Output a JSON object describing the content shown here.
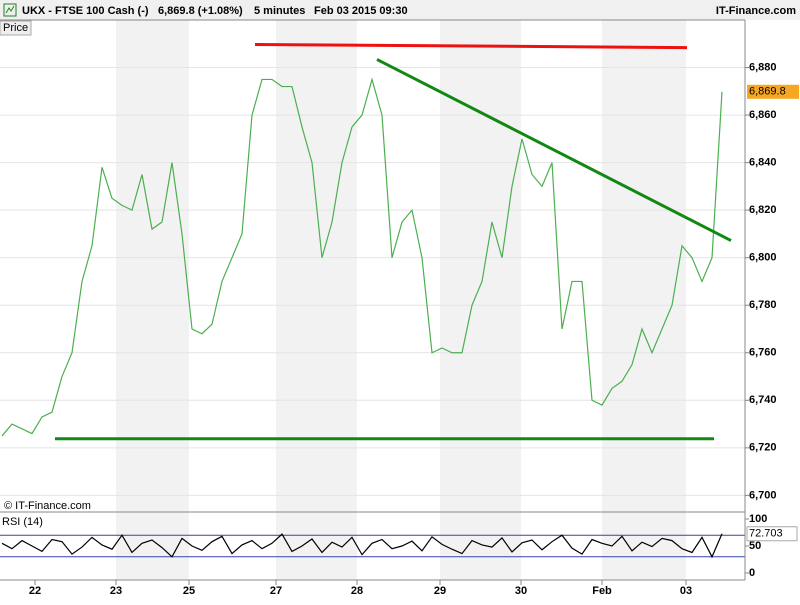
{
  "header": {
    "symbol": "UKX - FTSE 100 Cash (-)",
    "quote": "6,869.8 (+1.08%)",
    "interval": "5 minutes",
    "datetime": "Feb 03 2015 09:30",
    "brand": "IT-Finance.com"
  },
  "chart_data": [
    {
      "type": "line",
      "title": "Price",
      "watermark": "© IT-Finance.com",
      "color": "#4caf50",
      "values": [
        6725,
        6730,
        6728,
        6726,
        6733,
        6735,
        6750,
        6760,
        6790,
        6805,
        6838,
        6825,
        6822,
        6820,
        6835,
        6812,
        6815,
        6840,
        6810,
        6770,
        6768,
        6772,
        6790,
        6800,
        6810,
        6860,
        6875,
        6875,
        6872,
        6872,
        6855,
        6840,
        6800,
        6815,
        6840,
        6855,
        6860,
        6875,
        6860,
        6800,
        6815,
        6820,
        6800,
        6760,
        6762,
        6760,
        6760,
        6780,
        6790,
        6815,
        6800,
        6830,
        6850,
        6835,
        6830,
        6840,
        6770,
        6790,
        6790,
        6740,
        6738,
        6745,
        6748,
        6755,
        6770,
        6760,
        6770,
        6780,
        6805,
        6800,
        6790,
        6800,
        6869.8
      ],
      "xlim": [
        -0.2,
        74.3
      ],
      "ylim": [
        6693,
        6900
      ],
      "grid": true,
      "yticks": [
        {
          "value": 6700,
          "label": "6,700"
        },
        {
          "value": 6720,
          "label": "6,720"
        },
        {
          "value": 6740,
          "label": "6,740"
        },
        {
          "value": 6760,
          "label": "6,760"
        },
        {
          "value": 6780,
          "label": "6,780"
        },
        {
          "value": 6800,
          "label": "6,800"
        },
        {
          "value": 6820,
          "label": "6,820"
        },
        {
          "value": 6840,
          "label": "6,840"
        },
        {
          "value": 6860,
          "label": "6,860"
        },
        {
          "value": 6880,
          "label": "6,880"
        }
      ],
      "current": {
        "value": 6869.8,
        "label": "6,869.8"
      },
      "trendlines": [
        {
          "color": "#ee1111",
          "x": [
            25.3,
            68.5
          ],
          "y": [
            6889.7,
            6888.4
          ]
        },
        {
          "color": "#118811",
          "x": [
            37.5,
            72.9
          ],
          "y": [
            6883.4,
            6807.2
          ]
        },
        {
          "color": "#118811",
          "x": [
            5.3,
            71.2
          ],
          "y": [
            6723.8,
            6723.8
          ]
        }
      ]
    },
    {
      "type": "line",
      "title": "RSI (14)",
      "color": "#000000",
      "values": [
        55,
        45,
        60,
        50,
        40,
        62,
        58,
        35,
        48,
        66,
        52,
        44,
        70,
        38,
        55,
        61,
        47,
        30,
        64,
        50,
        42,
        58,
        68,
        36,
        52,
        60,
        45,
        55,
        72,
        40,
        50,
        63,
        38,
        57,
        48,
        66,
        34,
        55,
        62,
        45,
        50,
        59,
        41,
        67,
        53,
        44,
        36,
        60,
        52,
        48,
        65,
        39,
        56,
        61,
        43,
        58,
        70,
        46,
        35,
        62,
        55,
        50,
        68,
        41,
        57,
        49,
        64,
        60,
        45,
        38,
        66,
        30,
        72.703
      ],
      "xlim": [
        -0.2,
        74.3
      ],
      "ylim": [
        -13,
        113
      ],
      "yticks": [
        0,
        50,
        100
      ],
      "levels": [
        30,
        70
      ],
      "level_color": "#3344aa",
      "current": 72.703,
      "xticks": [
        {
          "value": 3.3,
          "label": "22"
        },
        {
          "value": 11.4,
          "label": "23"
        },
        {
          "value": 18.7,
          "label": "25"
        },
        {
          "value": 27.4,
          "label": "27"
        },
        {
          "value": 35.5,
          "label": "28"
        },
        {
          "value": 43.8,
          "label": "29"
        },
        {
          "value": 51.9,
          "label": "30"
        },
        {
          "value": 60,
          "label": "Feb"
        },
        {
          "value": 68.4,
          "label": "03"
        }
      ]
    }
  ]
}
